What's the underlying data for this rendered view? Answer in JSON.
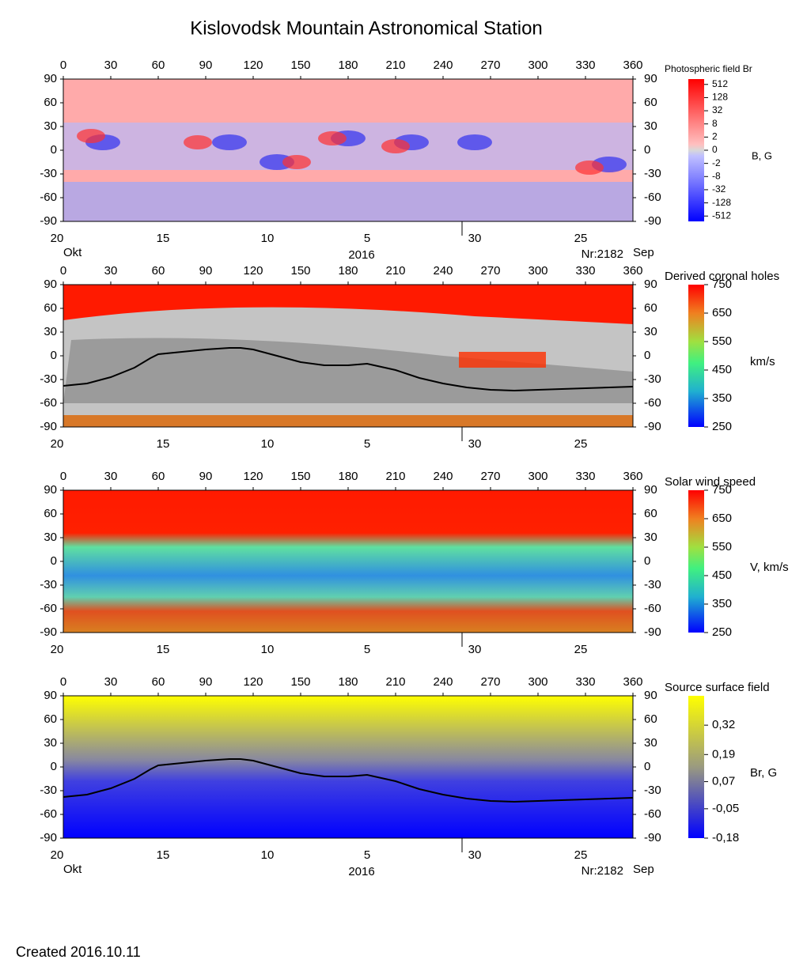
{
  "title": "Kislovodsk Mountain Astronomical Station",
  "footer": "Created  2016.10.11",
  "chart_data": [
    {
      "type": "heatmap",
      "colorbar_title": "Photospheric field Br",
      "colorbar_label": "B, G",
      "xlim": [
        0,
        360
      ],
      "xticks": [
        0,
        30,
        60,
        90,
        120,
        150,
        180,
        210,
        240,
        270,
        300,
        330,
        360
      ],
      "ylim": [
        -90,
        90
      ],
      "yticks": [
        -90,
        -60,
        -30,
        0,
        30,
        60,
        90
      ],
      "date_ticks": [
        {
          "value": -4,
          "label": "20"
        },
        {
          "value": 63,
          "label": "15"
        },
        {
          "value": 129,
          "label": "10"
        },
        {
          "value": 192,
          "label": "5"
        },
        {
          "value": 260,
          "label": "30"
        },
        {
          "value": 327,
          "label": "25"
        }
      ],
      "month_break": 252,
      "bottom_labels": {
        "month_left": "Okt",
        "year": "2016",
        "rotation": "Nr:2182",
        "month_right": "Sep"
      },
      "cscale": "symlog4",
      "clim": [
        -900,
        900
      ],
      "cticks": [
        512,
        128,
        32,
        8,
        2,
        0,
        -2,
        -8,
        -32,
        -128,
        -512
      ]
    },
    {
      "type": "heatmap",
      "colorbar_title": "Derived coronal holes",
      "colorbar_label": "km/s",
      "xlim": [
        0,
        360
      ],
      "xticks": [
        0,
        30,
        60,
        90,
        120,
        150,
        180,
        210,
        240,
        270,
        300,
        330,
        360
      ],
      "ylim": [
        -90,
        90
      ],
      "yticks": [
        -90,
        -60,
        -30,
        0,
        30,
        60,
        90
      ],
      "date_ticks": [
        {
          "value": -4,
          "label": "20"
        },
        {
          "value": 63,
          "label": "15"
        },
        {
          "value": 129,
          "label": "10"
        },
        {
          "value": 192,
          "label": "5"
        },
        {
          "value": 260,
          "label": "30"
        },
        {
          "value": 327,
          "label": "25"
        }
      ],
      "month_break": 252,
      "clim": [
        250,
        750
      ],
      "cticks": [
        750,
        650,
        550,
        450,
        350,
        250
      ],
      "x": [
        0,
        15,
        30,
        45,
        55,
        60,
        75,
        90,
        105,
        112,
        120,
        135,
        150,
        165,
        180,
        192,
        210,
        225,
        240,
        255,
        270,
        285,
        300,
        315,
        330,
        345,
        360
      ],
      "values": [
        -38,
        -35,
        -27,
        -15,
        -3,
        2,
        5,
        8,
        10,
        10,
        8,
        0,
        -8,
        -12,
        -12,
        -10,
        -18,
        -28,
        -35,
        -40,
        -43,
        -44,
        -43,
        -42,
        -41,
        -40,
        -39
      ]
    },
    {
      "type": "heatmap",
      "colorbar_title": "Solar wind speed",
      "colorbar_label": "V, km/s",
      "xlim": [
        0,
        360
      ],
      "xticks": [
        0,
        30,
        60,
        90,
        120,
        150,
        180,
        210,
        240,
        270,
        300,
        330,
        360
      ],
      "ylim": [
        -90,
        90
      ],
      "yticks": [
        -90,
        -60,
        -30,
        0,
        30,
        60,
        90
      ],
      "date_ticks": [
        {
          "value": -4,
          "label": "20"
        },
        {
          "value": 63,
          "label": "15"
        },
        {
          "value": 129,
          "label": "10"
        },
        {
          "value": 192,
          "label": "5"
        },
        {
          "value": 260,
          "label": "30"
        },
        {
          "value": 327,
          "label": "25"
        }
      ],
      "month_break": 252,
      "clim": [
        250,
        750
      ],
      "cticks": [
        750,
        650,
        550,
        450,
        350,
        250
      ]
    },
    {
      "type": "heatmap",
      "colorbar_title": "Source surface field",
      "colorbar_label": "Br, G",
      "xlim": [
        0,
        360
      ],
      "xticks": [
        0,
        30,
        60,
        90,
        120,
        150,
        180,
        210,
        240,
        270,
        300,
        330,
        360
      ],
      "ylim": [
        -90,
        90
      ],
      "yticks": [
        -90,
        -60,
        -30,
        0,
        30,
        60,
        90
      ],
      "date_ticks": [
        {
          "value": -4,
          "label": "20"
        },
        {
          "value": 63,
          "label": "15"
        },
        {
          "value": 129,
          "label": "10"
        },
        {
          "value": 192,
          "label": "5"
        },
        {
          "value": 260,
          "label": "30"
        },
        {
          "value": 327,
          "label": "25"
        }
      ],
      "month_break": 252,
      "bottom_labels": {
        "month_left": "Okt",
        "year": "2016",
        "rotation": "Nr:2182",
        "month_right": "Sep"
      },
      "clim": [
        -0.18,
        0.45
      ],
      "cticks": [
        {
          "value": 0.32,
          "label": "0,32"
        },
        {
          "value": 0.19,
          "label": "0,19"
        },
        {
          "value": 0.07,
          "label": "0,07"
        },
        {
          "value": -0.05,
          "label": "-0,05"
        },
        {
          "value": -0.18,
          "label": "-0,18"
        }
      ],
      "x": [
        0,
        15,
        30,
        45,
        55,
        60,
        75,
        90,
        105,
        112,
        120,
        135,
        150,
        165,
        180,
        192,
        210,
        225,
        240,
        255,
        270,
        285,
        300,
        315,
        330,
        345,
        360
      ],
      "values": [
        -38,
        -35,
        -27,
        -15,
        -3,
        2,
        5,
        8,
        10,
        10,
        8,
        0,
        -8,
        -12,
        -12,
        -10,
        -18,
        -28,
        -35,
        -40,
        -43,
        -44,
        -43,
        -42,
        -41,
        -40,
        -39
      ]
    }
  ]
}
